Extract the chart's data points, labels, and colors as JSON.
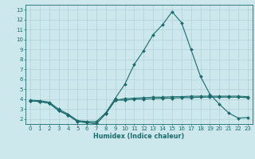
{
  "xlabel": "Humidex (Indice chaleur)",
  "bg_color": "#cce8ec",
  "grid_color": "#aacdd4",
  "line_color": "#1a6b6b",
  "xlim": [
    -0.5,
    23.5
  ],
  "ylim": [
    1.5,
    13.5
  ],
  "xticks": [
    0,
    1,
    2,
    3,
    4,
    5,
    6,
    7,
    8,
    9,
    10,
    11,
    12,
    13,
    14,
    15,
    16,
    17,
    18,
    19,
    20,
    21,
    22,
    23
  ],
  "yticks": [
    2,
    3,
    4,
    5,
    6,
    7,
    8,
    9,
    10,
    11,
    12,
    13
  ],
  "line1_x": [
    0,
    1,
    2,
    3,
    4,
    5,
    6,
    7,
    8,
    9,
    10,
    11,
    12,
    13,
    14,
    15,
    16,
    17,
    18,
    19,
    20,
    21,
    22,
    23
  ],
  "line1_y": [
    3.9,
    3.85,
    3.7,
    3.0,
    2.5,
    1.85,
    1.75,
    1.75,
    2.65,
    4.1,
    5.5,
    7.5,
    8.9,
    10.5,
    11.5,
    12.8,
    11.7,
    9.0,
    6.3,
    4.5,
    3.5,
    2.6,
    2.1,
    2.15
  ],
  "line2_x": [
    0,
    1,
    2,
    3,
    4,
    5,
    6,
    7,
    8,
    9,
    10,
    11,
    12,
    13,
    14,
    15,
    16,
    17,
    18,
    19,
    20,
    21,
    22,
    23
  ],
  "line2_y": [
    3.85,
    3.75,
    3.6,
    2.85,
    2.4,
    1.75,
    1.65,
    1.55,
    2.55,
    3.9,
    4.05,
    4.1,
    4.15,
    4.2,
    4.2,
    4.25,
    4.25,
    4.3,
    4.3,
    4.3,
    4.3,
    4.3,
    4.3,
    4.25
  ],
  "line3_x": [
    0,
    1,
    2,
    3,
    4,
    5,
    6,
    7,
    8,
    9,
    10,
    11,
    12,
    13,
    14,
    15,
    16,
    17,
    18,
    19,
    20,
    21,
    22,
    23
  ],
  "line3_y": [
    3.85,
    3.75,
    3.6,
    2.85,
    2.4,
    1.75,
    1.65,
    1.55,
    2.55,
    3.9,
    3.9,
    4.0,
    4.0,
    4.05,
    4.1,
    4.1,
    4.15,
    4.15,
    4.2,
    4.2,
    4.2,
    4.2,
    4.2,
    4.15
  ]
}
